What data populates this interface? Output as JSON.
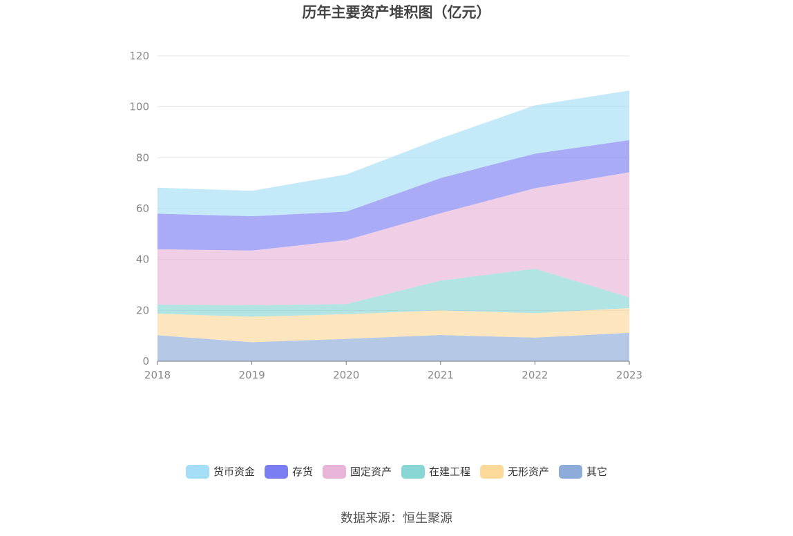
{
  "chart_data": {
    "type": "area",
    "stacked": true,
    "title": "历年主要资产堆积图（亿元）",
    "x": [
      "2018",
      "2019",
      "2020",
      "2021",
      "2022",
      "2023"
    ],
    "ylim": [
      0,
      120
    ],
    "yticks": [
      0,
      20,
      40,
      60,
      80,
      100,
      120
    ],
    "grid": true,
    "legend_position": "bottom",
    "series": [
      {
        "name": "其它",
        "color": "#8eacd9",
        "values": [
          10.2,
          7.5,
          8.8,
          10.3,
          9.3,
          11.2
        ]
      },
      {
        "name": "无形资产",
        "color": "#fcd899",
        "values": [
          8.5,
          10.0,
          9.7,
          9.7,
          9.6,
          9.7
        ]
      },
      {
        "name": "在建工程",
        "color": "#88d6d6",
        "values": [
          3.6,
          4.5,
          4.0,
          11.7,
          17.5,
          4.2
        ]
      },
      {
        "name": "固定资产",
        "color": "#e8b4d8",
        "values": [
          21.7,
          21.5,
          25.1,
          26.5,
          31.6,
          49.2
        ]
      },
      {
        "name": "存货",
        "color": "#7b7ef2",
        "values": [
          14.0,
          13.5,
          11.2,
          13.8,
          13.6,
          12.6
        ]
      },
      {
        "name": "货币资金",
        "color": "#a4def7",
        "values": [
          10.2,
          10.0,
          14.6,
          15.6,
          19.0,
          19.5
        ]
      }
    ]
  },
  "legend_order": [
    "货币资金",
    "存货",
    "固定资产",
    "在建工程",
    "无形资产",
    "其它"
  ],
  "source": "数据来源：恒生聚源"
}
